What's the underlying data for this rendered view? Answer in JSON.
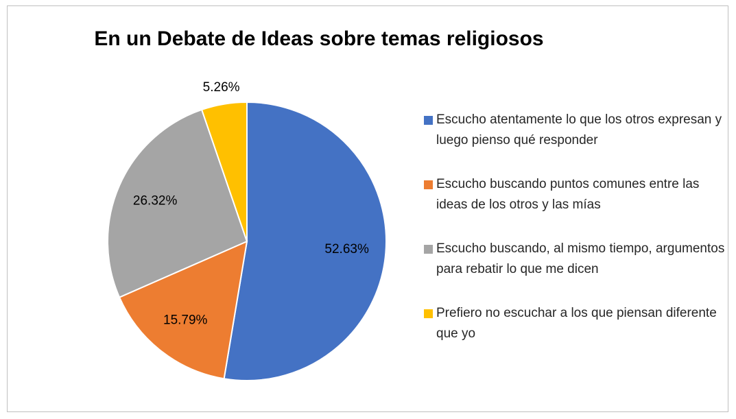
{
  "chart_data": {
    "type": "pie",
    "title": "En un Debate de Ideas sobre temas religiosos",
    "categories": [
      "Escucho atentamente lo que los otros expresan y luego pienso qué responder",
      "Escucho buscando puntos comunes entre las ideas de los otros y las mías",
      "Escucho buscando, al mismo tiempo, argumentos para rebatir lo que me dicen",
      "Prefiero no escuchar a los que piensan diferente que yo"
    ],
    "values": [
      52.63,
      15.79,
      26.32,
      5.26
    ],
    "value_labels": [
      "52.63%",
      "15.79%",
      "26.32%",
      "5.26%"
    ],
    "colors": [
      "#4472c4",
      "#ed7d31",
      "#a5a5a5",
      "#ffc000"
    ],
    "legend": "right"
  }
}
